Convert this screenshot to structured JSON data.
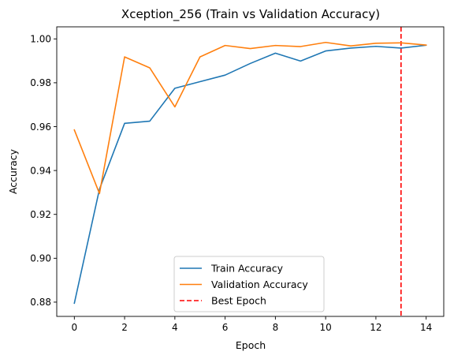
{
  "chart_data": {
    "type": "line",
    "title": "Xception_256 (Train vs Validation Accuracy)",
    "xlabel": "Epoch",
    "ylabel": "Accuracy",
    "xlim": [
      -0.7,
      14.7
    ],
    "ylim": [
      0.8735,
      1.0055
    ],
    "xticks": [
      0,
      2,
      4,
      6,
      8,
      10,
      12,
      14
    ],
    "yticks": [
      0.88,
      0.9,
      0.92,
      0.94,
      0.96,
      0.98,
      1.0
    ],
    "ytick_labels": [
      "0.88",
      "0.90",
      "0.92",
      "0.94",
      "0.96",
      "0.98",
      "1.00"
    ],
    "grid": false,
    "legend_position": "lower-center",
    "x": [
      0,
      1,
      2,
      3,
      4,
      5,
      6,
      7,
      8,
      9,
      10,
      11,
      12,
      13,
      14
    ],
    "series": [
      {
        "name": "Train Accuracy",
        "color": "#1f77b4",
        "values": [
          0.8795,
          0.9315,
          0.9615,
          0.9625,
          0.9775,
          0.9805,
          0.9835,
          0.9888,
          0.9935,
          0.9899,
          0.9945,
          0.9958,
          0.9966,
          0.9958,
          0.9971
        ]
      },
      {
        "name": "Validation Accuracy",
        "color": "#ff7f0e",
        "values": [
          0.9585,
          0.9295,
          0.9918,
          0.9868,
          0.969,
          0.9918,
          0.997,
          0.9956,
          0.997,
          0.9965,
          0.9984,
          0.9968,
          0.998,
          0.9982,
          0.9972
        ]
      }
    ],
    "vlines": [
      {
        "name": "Best Epoch",
        "x": 13,
        "color": "#ff0000",
        "style": "dashed"
      }
    ]
  }
}
